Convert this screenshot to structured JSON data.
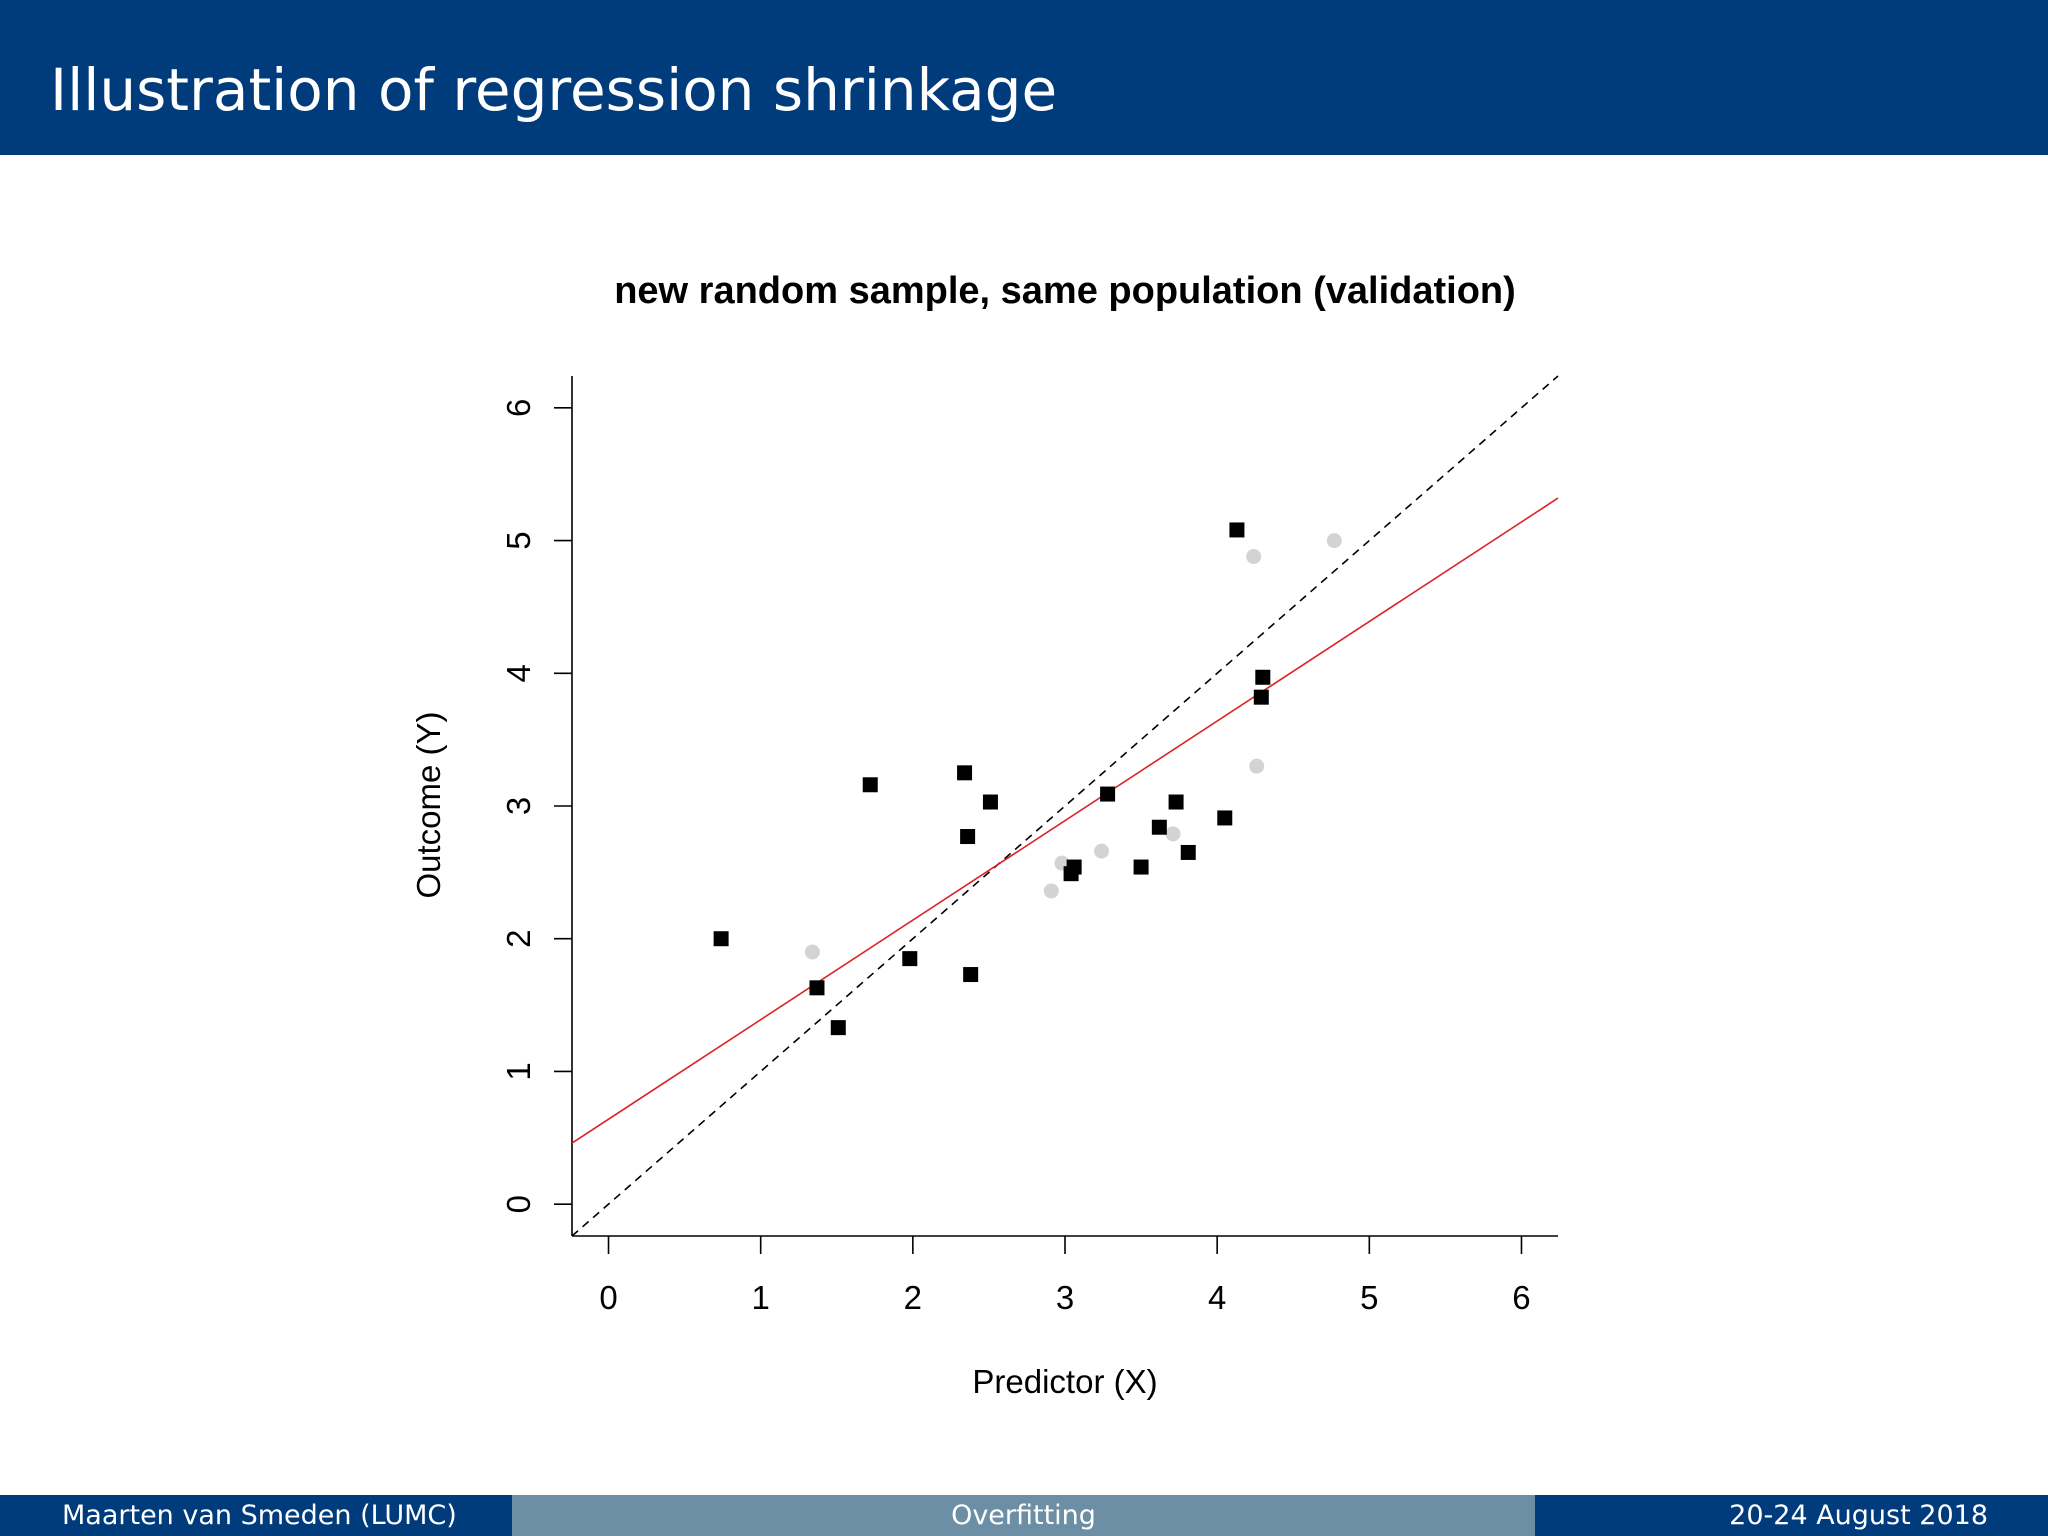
{
  "slide": {
    "title": "Illustration of regression shrinkage",
    "header_color": "#003b7c",
    "footer": {
      "left": "Maarten van Smeden  (LUMC)",
      "center": "Overfitting",
      "right": "20-24 August 2018",
      "left_color": "#003b7c",
      "center_color": "#6c8fa6",
      "right_color": "#003b7c"
    }
  },
  "chart_data": {
    "type": "scatter",
    "title": "new random sample, same population (validation)",
    "xlabel": "Predictor (X)",
    "ylabel": "Outcome (Y)",
    "xlim": [
      -0.24,
      6.24
    ],
    "ylim": [
      -0.24,
      6.24
    ],
    "xticks": [
      0,
      1,
      2,
      3,
      4,
      5,
      6
    ],
    "yticks": [
      0,
      1,
      2,
      3,
      4,
      5,
      6
    ],
    "grid": false,
    "series": [
      {
        "marker": "square",
        "color": "#000000",
        "points": [
          [
            0.74,
            2.0
          ],
          [
            1.37,
            1.63
          ],
          [
            1.51,
            1.33
          ],
          [
            1.72,
            3.16
          ],
          [
            1.98,
            1.85
          ],
          [
            2.34,
            3.25
          ],
          [
            2.36,
            2.77
          ],
          [
            2.38,
            1.73
          ],
          [
            2.51,
            3.03
          ],
          [
            3.04,
            2.49
          ],
          [
            3.06,
            2.54
          ],
          [
            3.28,
            3.09
          ],
          [
            3.5,
            2.54
          ],
          [
            3.62,
            2.84
          ],
          [
            3.73,
            3.03
          ],
          [
            3.81,
            2.65
          ],
          [
            4.05,
            2.91
          ],
          [
            4.13,
            5.08
          ],
          [
            4.29,
            3.82
          ],
          [
            4.3,
            3.97
          ]
        ]
      },
      {
        "marker": "circle",
        "color": "#d3d3d3",
        "points": [
          [
            1.34,
            1.9
          ],
          [
            2.91,
            2.36
          ],
          [
            2.98,
            2.57
          ],
          [
            3.24,
            2.66
          ],
          [
            3.71,
            2.79
          ],
          [
            4.24,
            4.88
          ],
          [
            4.26,
            3.3
          ],
          [
            4.77,
            5.0
          ]
        ]
      }
    ],
    "lines": [
      {
        "style": "dashed",
        "color": "#000000",
        "intercept": 0.0,
        "slope": 1.0
      },
      {
        "style": "solid",
        "color": "#dd2222",
        "intercept": 0.64,
        "slope": 0.75
      }
    ]
  }
}
